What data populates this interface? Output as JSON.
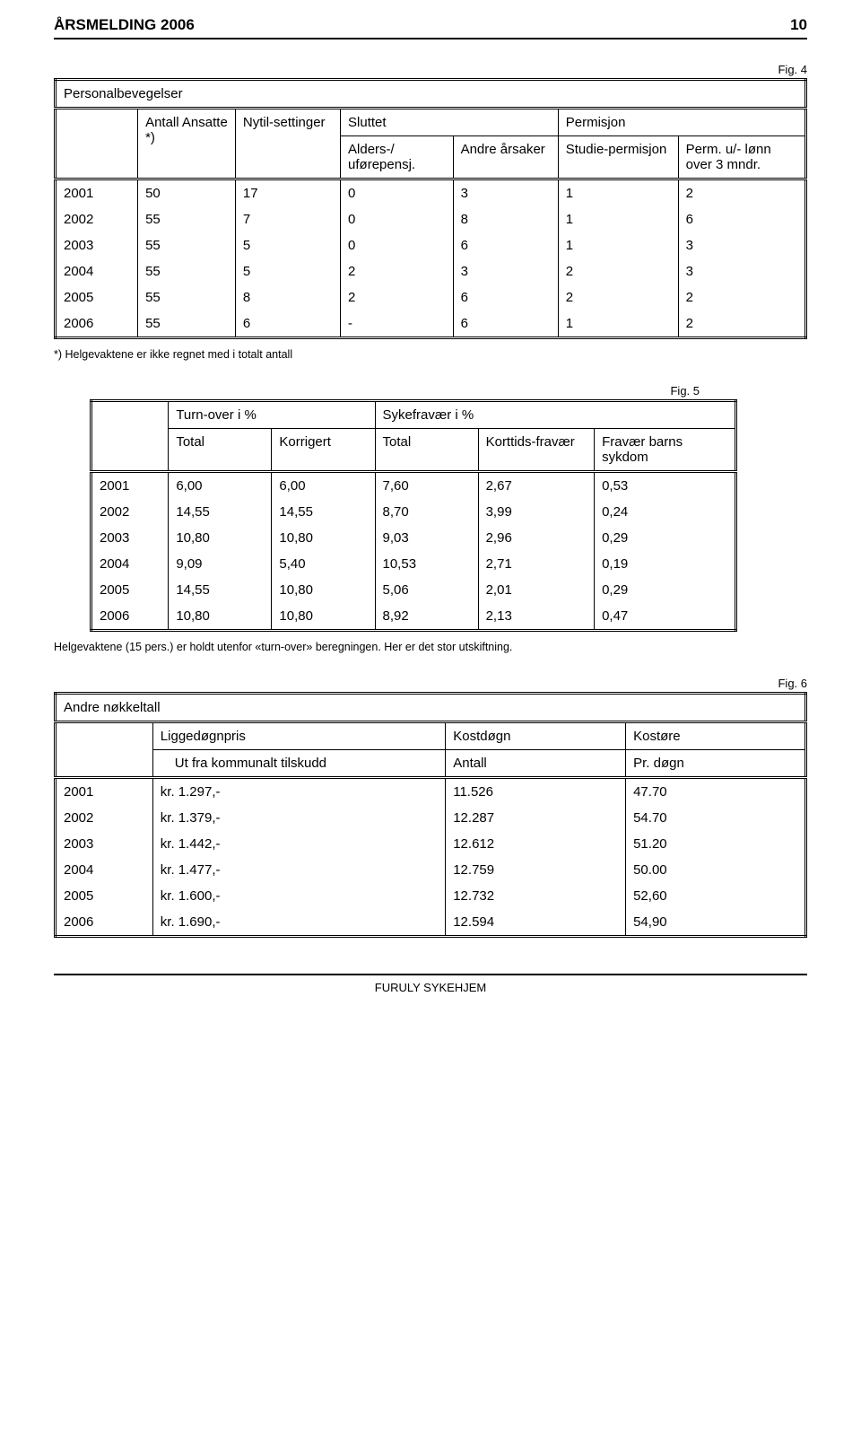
{
  "header": {
    "title": "ÅRSMELDING 2006",
    "page": "10"
  },
  "figLabels": {
    "f4": "Fig. 4",
    "f5": "Fig. 5",
    "f6": "Fig. 6"
  },
  "footnotes": {
    "t1": "*) Helgevaktene er ikke regnet med i totalt antall",
    "t2": "Helgevaktene (15 pers.) er holdt utenfor «turn-over» beregningen. Her er det stor utskiftning."
  },
  "footer": "FURULY SYKEHJEM",
  "t1": {
    "type": "table",
    "title": "Personalbevegelser",
    "headers": {
      "c1": "Antall Ansatte *)",
      "c2": "Nytil-settinger",
      "c3": "Sluttet",
      "c3a": "Alders-/ uførepensj.",
      "c3b": "Andre årsaker",
      "c4": "Permisjon",
      "c4a": "Studie-permisjon",
      "c4b": "Perm. u/- lønn over 3 mndr."
    },
    "rows": [
      [
        "2001",
        "50",
        "17",
        "0",
        "3",
        "1",
        "2"
      ],
      [
        "2002",
        "55",
        "7",
        "0",
        "8",
        "1",
        "6"
      ],
      [
        "2003",
        "55",
        "5",
        "0",
        "6",
        "1",
        "3"
      ],
      [
        "2004",
        "55",
        "5",
        "2",
        "3",
        "2",
        "3"
      ],
      [
        "2005",
        "55",
        "8",
        "2",
        "6",
        "2",
        "2"
      ],
      [
        "2006",
        "55",
        "6",
        "-",
        "6",
        "1",
        "2"
      ]
    ]
  },
  "t2": {
    "type": "table",
    "headers": {
      "g1": "Turn-over i %",
      "g2": "Sykefravær i %",
      "c1": "Total",
      "c2": "Korrigert",
      "c3": "Total",
      "c4": "Korttids-fravær",
      "c5": "Fravær barns sykdom"
    },
    "rows": [
      [
        "2001",
        "6,00",
        "6,00",
        "7,60",
        "2,67",
        "0,53"
      ],
      [
        "2002",
        "14,55",
        "14,55",
        "8,70",
        "3,99",
        "0,24"
      ],
      [
        "2003",
        "10,80",
        "10,80",
        "9,03",
        "2,96",
        "0,29"
      ],
      [
        "2004",
        "9,09",
        "5,40",
        "10,53",
        "2,71",
        "0,19"
      ],
      [
        "2005",
        "14,55",
        "10,80",
        "5,06",
        "2,01",
        "0,29"
      ],
      [
        "2006",
        "10,80",
        "10,80",
        "8,92",
        "2,13",
        "0,47"
      ]
    ]
  },
  "t3": {
    "type": "table",
    "title": "Andre nøkkeltall",
    "headers": {
      "c1": "Liggedøgnpris",
      "c1s": "Ut fra kommunalt tilskudd",
      "c2": "Kostdøgn",
      "c2s": "Antall",
      "c3": "Kostøre",
      "c3s": "Pr. døgn"
    },
    "rows": [
      [
        "2001",
        "kr. 1.297,-",
        "11.526",
        "47.70"
      ],
      [
        "2002",
        "kr. 1.379,-",
        "12.287",
        "54.70"
      ],
      [
        "2003",
        "kr. 1.442,-",
        "12.612",
        "51.20"
      ],
      [
        "2004",
        "kr. 1.477,-",
        "12.759",
        "50.00"
      ],
      [
        "2005",
        "kr. 1.600,-",
        "12.732",
        "52,60"
      ],
      [
        "2006",
        "kr. 1.690,-",
        "12.594",
        "54,90"
      ]
    ]
  }
}
